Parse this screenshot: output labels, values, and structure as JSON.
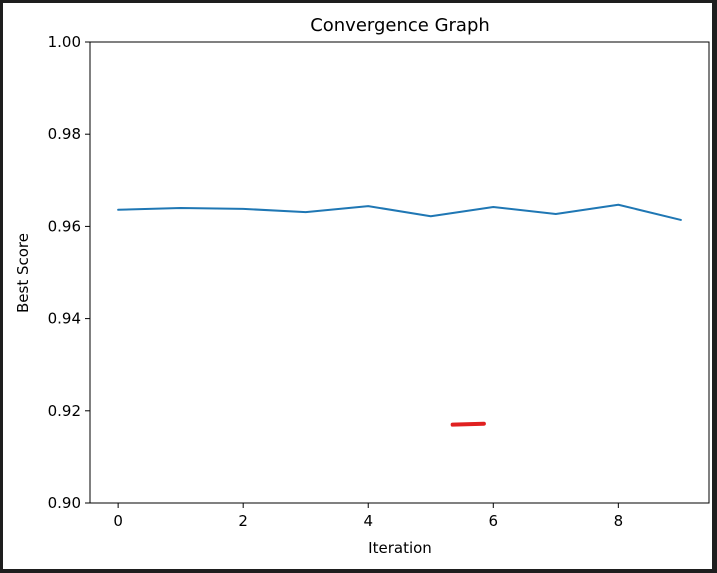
{
  "chart_data": {
    "type": "line",
    "title": "Convergence Graph",
    "xlabel": "Iteration",
    "ylabel": "Best Score",
    "xlim": [
      -0.45,
      9.45
    ],
    "ylim": [
      0.9,
      1.0
    ],
    "xticks": [
      0,
      2,
      4,
      6,
      8
    ],
    "yticks": [
      0.9,
      0.92,
      0.94,
      0.96,
      0.98,
      1.0
    ],
    "xtick_labels": [
      "0",
      "2",
      "4",
      "6",
      "8"
    ],
    "ytick_labels": [
      "0.90",
      "0.92",
      "0.94",
      "0.96",
      "0.98",
      "1.00"
    ],
    "grid": false,
    "series": [
      {
        "color": "#1f77b4",
        "x": [
          0,
          1,
          2,
          3,
          4,
          5,
          6,
          7,
          8,
          9
        ],
        "y": [
          0.9636,
          0.964,
          0.9638,
          0.9631,
          0.9644,
          0.9622,
          0.9642,
          0.9627,
          0.9647,
          0.9614
        ]
      }
    ],
    "annotations": [
      {
        "kind": "red-stroke",
        "color": "#e02020",
        "x": [
          5.35,
          5.85
        ],
        "y": [
          0.917,
          0.9172
        ]
      }
    ]
  }
}
